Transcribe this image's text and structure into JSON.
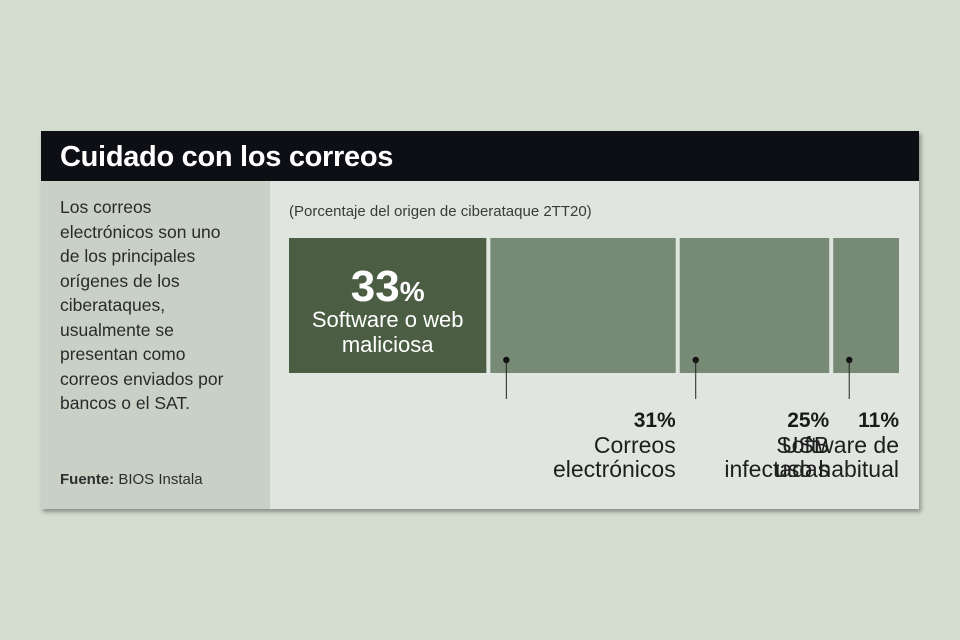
{
  "title": "Cuidado con los correos",
  "description": "Los correos electrónicos son uno de los principales orígenes de los ciberataques, usualmente se presentan como correos enviados por bancos o el SAT.",
  "description_lines": [
    "Los correos",
    "electrónicos son uno",
    "de los principales",
    "orígenes de los",
    "ciberataques,",
    "usualmente se",
    "presentan como",
    "correos enviados por",
    "bancos o el SAT."
  ],
  "source": {
    "label": "Fuente:",
    "value": "BIOS Instala"
  },
  "colors": {
    "title_bg": "#0d0f14",
    "bar_highlight": "#4b5e43",
    "bar": "#778a75",
    "card_bg": "#e0e6df",
    "sidebar_bg": "#c9d1c6"
  },
  "chart_data": {
    "type": "bar",
    "orientation": "horizontal-proportional",
    "title": "Cuidado con los correos",
    "subtitle": "(Porcentaje del origen de ciberataque 2TT20)",
    "unit": "%",
    "categories": [
      "Software o web maliciosa",
      "Correos electrónicos",
      "USB infectadas",
      "Software de uso habitual"
    ],
    "category_lines": [
      [
        "Software o web",
        "maliciosa"
      ],
      [
        "Correos",
        "electrónicos"
      ],
      [
        "USB",
        "infectadas"
      ],
      [
        "Software de",
        "uso habitual"
      ]
    ],
    "values": [
      33,
      31,
      25,
      11
    ],
    "value_labels": [
      "33",
      "31%",
      "25%",
      "11%"
    ],
    "highlight_percent_sign": "%"
  }
}
